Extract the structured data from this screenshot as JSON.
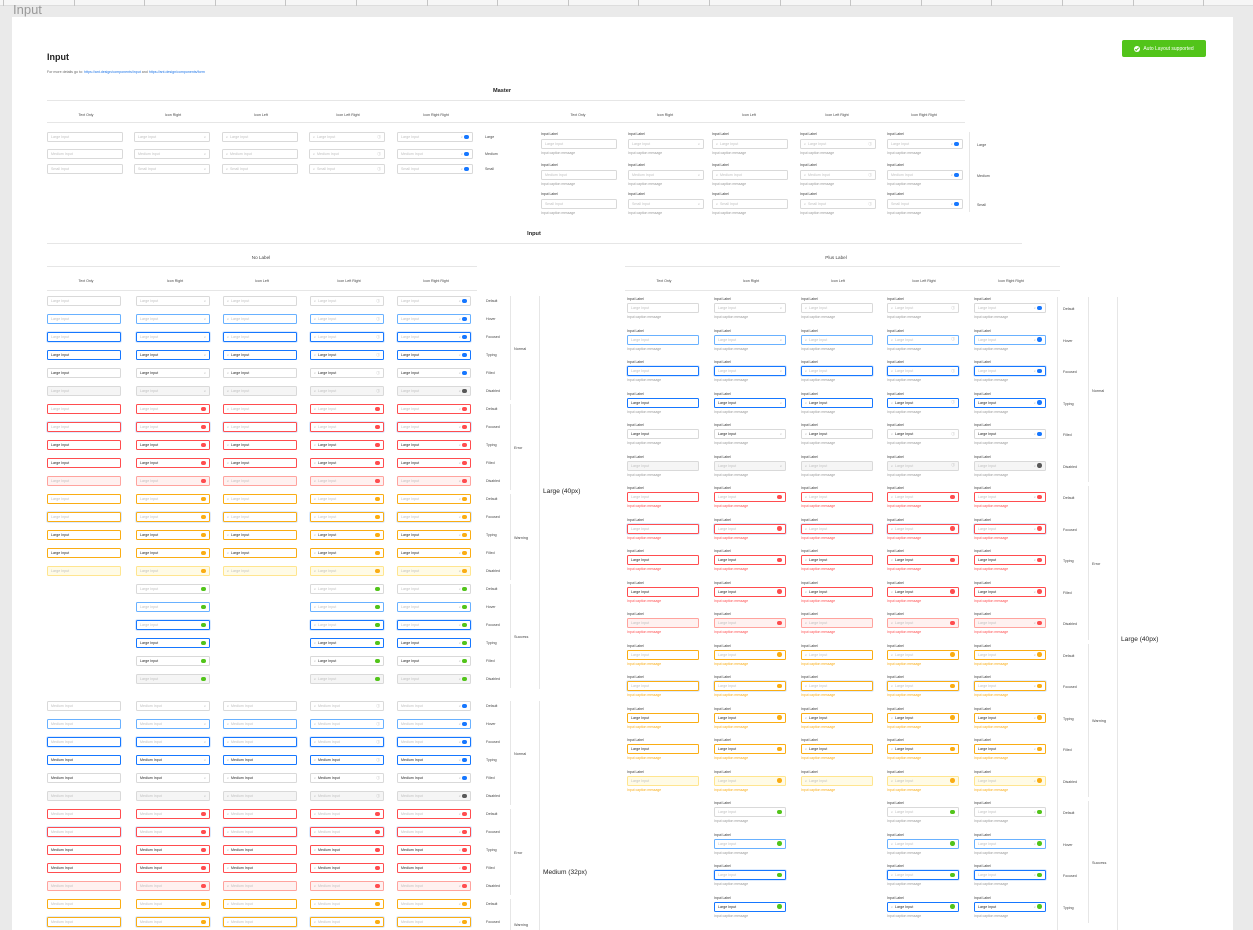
{
  "frame_label": "Input",
  "header": {
    "title": "Input",
    "links_prefix": "For more details go to:",
    "link1": "https://ant.design/components/input",
    "links_and": "and",
    "link2": "https://ant.design/components/form"
  },
  "auto_layout_button": "Auto Layout supported",
  "master": {
    "title": "Master",
    "columns": [
      "Text Only",
      "Icon Right",
      "Icon Left",
      "Icon Left Right",
      "Icon Right Right"
    ],
    "sizes": [
      "Large",
      "Medium",
      "Small"
    ],
    "inputs": [
      "Large Input",
      "Medium Input",
      "Small Input"
    ],
    "input_label": "Input Label",
    "caption": "Input caption message"
  },
  "input_section": {
    "title": "Input",
    "no_label": "No Label",
    "plus_label": "Plus Label",
    "columns": [
      "Text Only",
      "Icon Right",
      "Icon Left",
      "Icon Left Right",
      "Icon Right Right"
    ],
    "types": [
      "Normal",
      "Error",
      "Warning",
      "Success"
    ],
    "states": [
      "Default",
      "Hover",
      "Focused",
      "Typing",
      "Filled",
      "Disabled"
    ],
    "large_group": "Large (40px)",
    "medium_group": "Medium (32px)",
    "large_input": "Large Input",
    "medium_input": "Medium Input",
    "input_label": "Input Label",
    "caption": "Input caption message"
  },
  "colors": {
    "accent": "#1677ff",
    "error": "#ff4d4f",
    "warning": "#faad14",
    "success": "#52c41a",
    "neutral_icon": "#8c8c8c"
  }
}
